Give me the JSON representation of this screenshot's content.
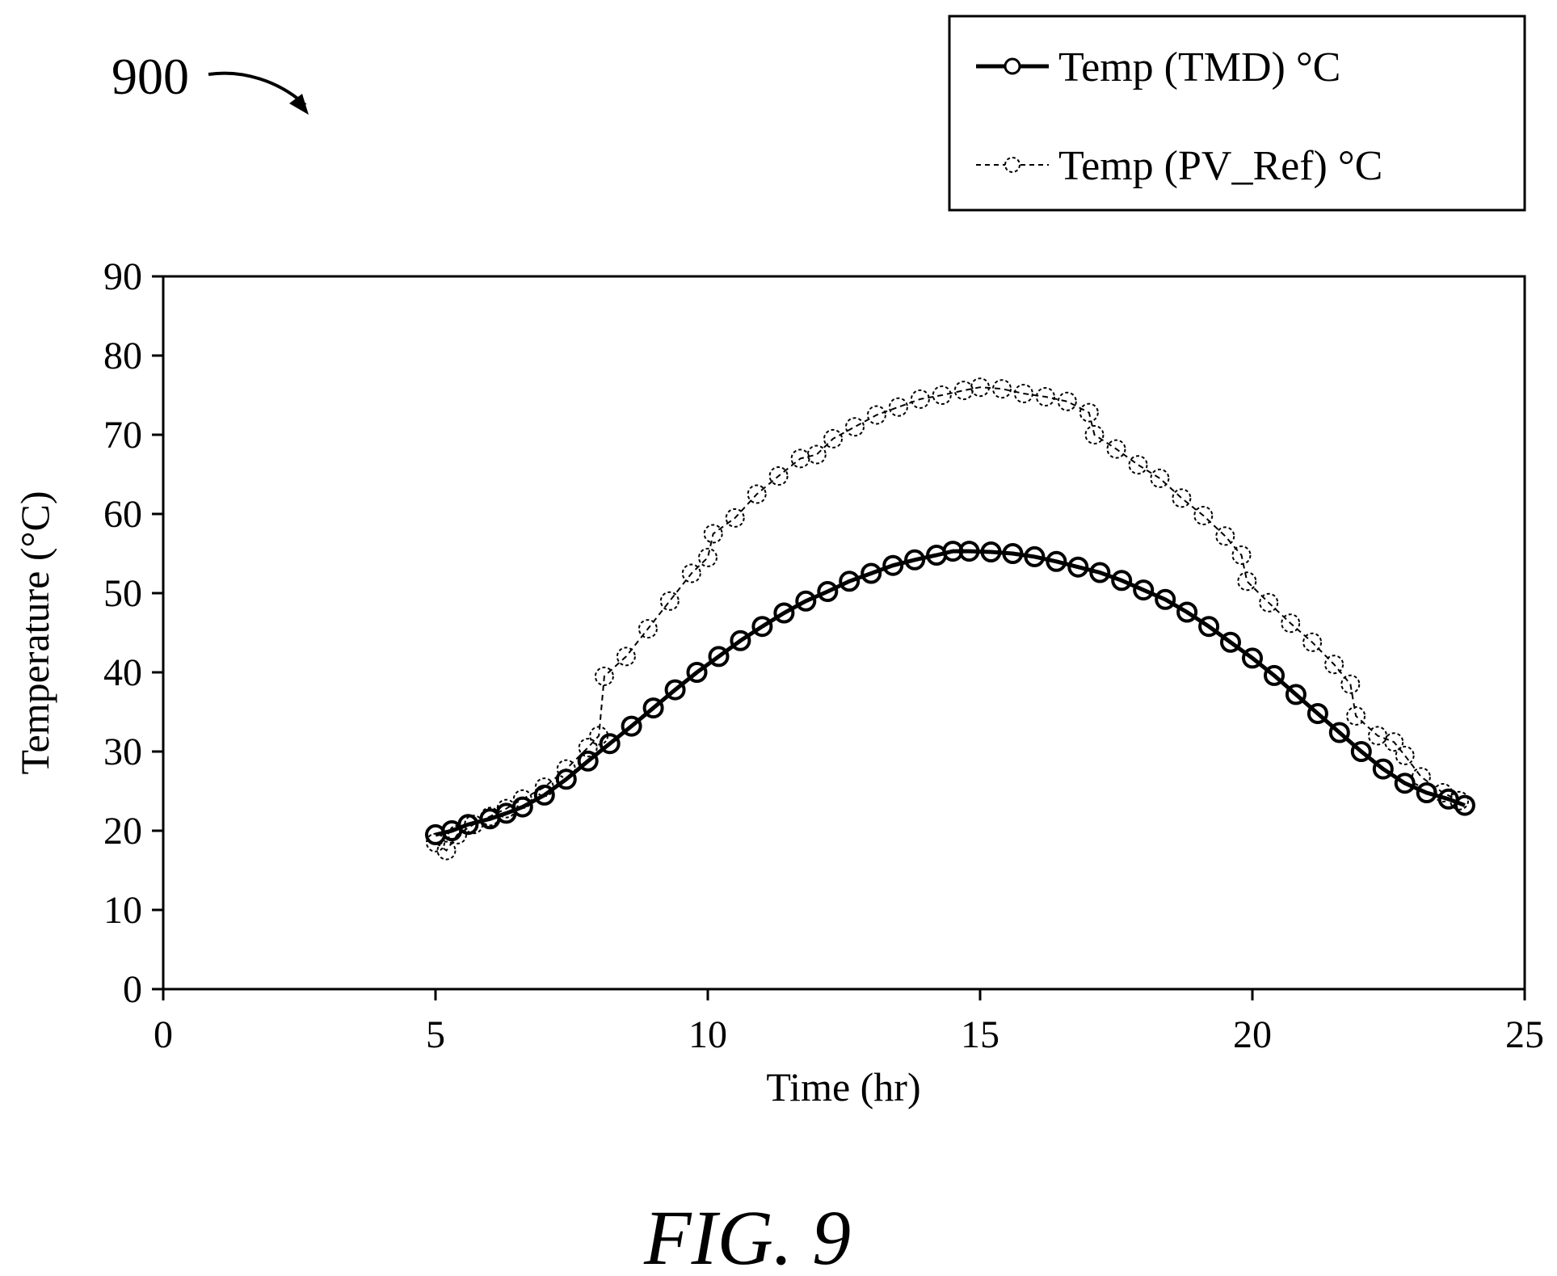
{
  "figure": {
    "ref_numeral": "900",
    "caption": "FIG. 9"
  },
  "chart_data": {
    "type": "line",
    "title": "",
    "xlabel": "Time (hr)",
    "ylabel": "Temperature (°C)",
    "xlim": [
      0,
      25
    ],
    "ylim": [
      0,
      90
    ],
    "x_ticks": [
      0,
      5,
      10,
      15,
      20,
      25
    ],
    "y_ticks": [
      0,
      10,
      20,
      30,
      40,
      50,
      60,
      70,
      80,
      90
    ],
    "grid": false,
    "legend_position": "top-right, outside plot",
    "series": [
      {
        "name": "Temp (TMD) °C",
        "line_style": "solid",
        "marker": "open-circle",
        "color": "#000000",
        "points": [
          [
            5.0,
            19.5
          ],
          [
            5.3,
            20.0
          ],
          [
            5.6,
            20.8
          ],
          [
            6.0,
            21.5
          ],
          [
            6.3,
            22.2
          ],
          [
            6.6,
            23.0
          ],
          [
            7.0,
            24.5
          ],
          [
            7.4,
            26.5
          ],
          [
            7.8,
            28.8
          ],
          [
            8.2,
            31.0
          ],
          [
            8.6,
            33.2
          ],
          [
            9.0,
            35.5
          ],
          [
            9.4,
            37.8
          ],
          [
            9.8,
            40.0
          ],
          [
            10.2,
            42.0
          ],
          [
            10.6,
            44.0
          ],
          [
            11.0,
            45.8
          ],
          [
            11.4,
            47.5
          ],
          [
            11.8,
            49.0
          ],
          [
            12.2,
            50.2
          ],
          [
            12.6,
            51.5
          ],
          [
            13.0,
            52.5
          ],
          [
            13.4,
            53.5
          ],
          [
            13.8,
            54.2
          ],
          [
            14.2,
            54.8
          ],
          [
            14.5,
            55.3
          ],
          [
            14.8,
            55.3
          ],
          [
            15.2,
            55.2
          ],
          [
            15.6,
            55.0
          ],
          [
            16.0,
            54.6
          ],
          [
            16.4,
            54.0
          ],
          [
            16.8,
            53.3
          ],
          [
            17.2,
            52.6
          ],
          [
            17.6,
            51.6
          ],
          [
            18.0,
            50.4
          ],
          [
            18.4,
            49.2
          ],
          [
            18.8,
            47.6
          ],
          [
            19.2,
            45.8
          ],
          [
            19.6,
            43.8
          ],
          [
            20.0,
            41.8
          ],
          [
            20.4,
            39.6
          ],
          [
            20.8,
            37.2
          ],
          [
            21.2,
            34.8
          ],
          [
            21.6,
            32.4
          ],
          [
            22.0,
            30.0
          ],
          [
            22.4,
            27.8
          ],
          [
            22.8,
            26.0
          ],
          [
            23.2,
            24.8
          ],
          [
            23.6,
            24.0
          ],
          [
            23.9,
            23.2
          ]
        ]
      },
      {
        "name": "Temp (PV_Ref) °C",
        "line_style": "dashed",
        "marker": "open-circle",
        "color": "#000000",
        "points": [
          [
            5.0,
            18.5
          ],
          [
            5.2,
            17.5
          ],
          [
            5.4,
            19.5
          ],
          [
            5.7,
            20.8
          ],
          [
            6.0,
            21.8
          ],
          [
            6.3,
            22.8
          ],
          [
            6.6,
            24.0
          ],
          [
            7.0,
            25.5
          ],
          [
            7.4,
            27.8
          ],
          [
            7.8,
            30.5
          ],
          [
            8.0,
            32.0
          ],
          [
            8.1,
            39.5
          ],
          [
            8.5,
            42.0
          ],
          [
            8.9,
            45.5
          ],
          [
            9.3,
            49.0
          ],
          [
            9.7,
            52.5
          ],
          [
            10.0,
            54.5
          ],
          [
            10.1,
            57.5
          ],
          [
            10.5,
            59.5
          ],
          [
            10.9,
            62.5
          ],
          [
            11.3,
            64.8
          ],
          [
            11.7,
            67.0
          ],
          [
            12.0,
            67.5
          ],
          [
            12.3,
            69.5
          ],
          [
            12.7,
            71.0
          ],
          [
            13.1,
            72.5
          ],
          [
            13.5,
            73.5
          ],
          [
            13.9,
            74.5
          ],
          [
            14.3,
            75.0
          ],
          [
            14.7,
            75.6
          ],
          [
            15.0,
            76.0
          ],
          [
            15.4,
            75.8
          ],
          [
            15.8,
            75.2
          ],
          [
            16.2,
            74.8
          ],
          [
            16.6,
            74.2
          ],
          [
            17.0,
            72.8
          ],
          [
            17.1,
            70.0
          ],
          [
            17.5,
            68.2
          ],
          [
            17.9,
            66.2
          ],
          [
            18.3,
            64.5
          ],
          [
            18.7,
            62.0
          ],
          [
            19.1,
            59.8
          ],
          [
            19.5,
            57.2
          ],
          [
            19.8,
            54.8
          ],
          [
            19.9,
            51.5
          ],
          [
            20.3,
            48.8
          ],
          [
            20.7,
            46.2
          ],
          [
            21.1,
            43.8
          ],
          [
            21.5,
            41.0
          ],
          [
            21.8,
            38.5
          ],
          [
            21.9,
            34.5
          ],
          [
            22.3,
            32.0
          ],
          [
            22.6,
            31.2
          ],
          [
            22.8,
            29.5
          ],
          [
            23.1,
            26.8
          ],
          [
            23.5,
            24.8
          ],
          [
            23.8,
            23.8
          ]
        ]
      }
    ]
  },
  "legend": {
    "items": [
      {
        "label": "Temp (TMD) °C",
        "style": "solid"
      },
      {
        "label": "Temp (PV_Ref) °C",
        "style": "dashed"
      }
    ]
  }
}
